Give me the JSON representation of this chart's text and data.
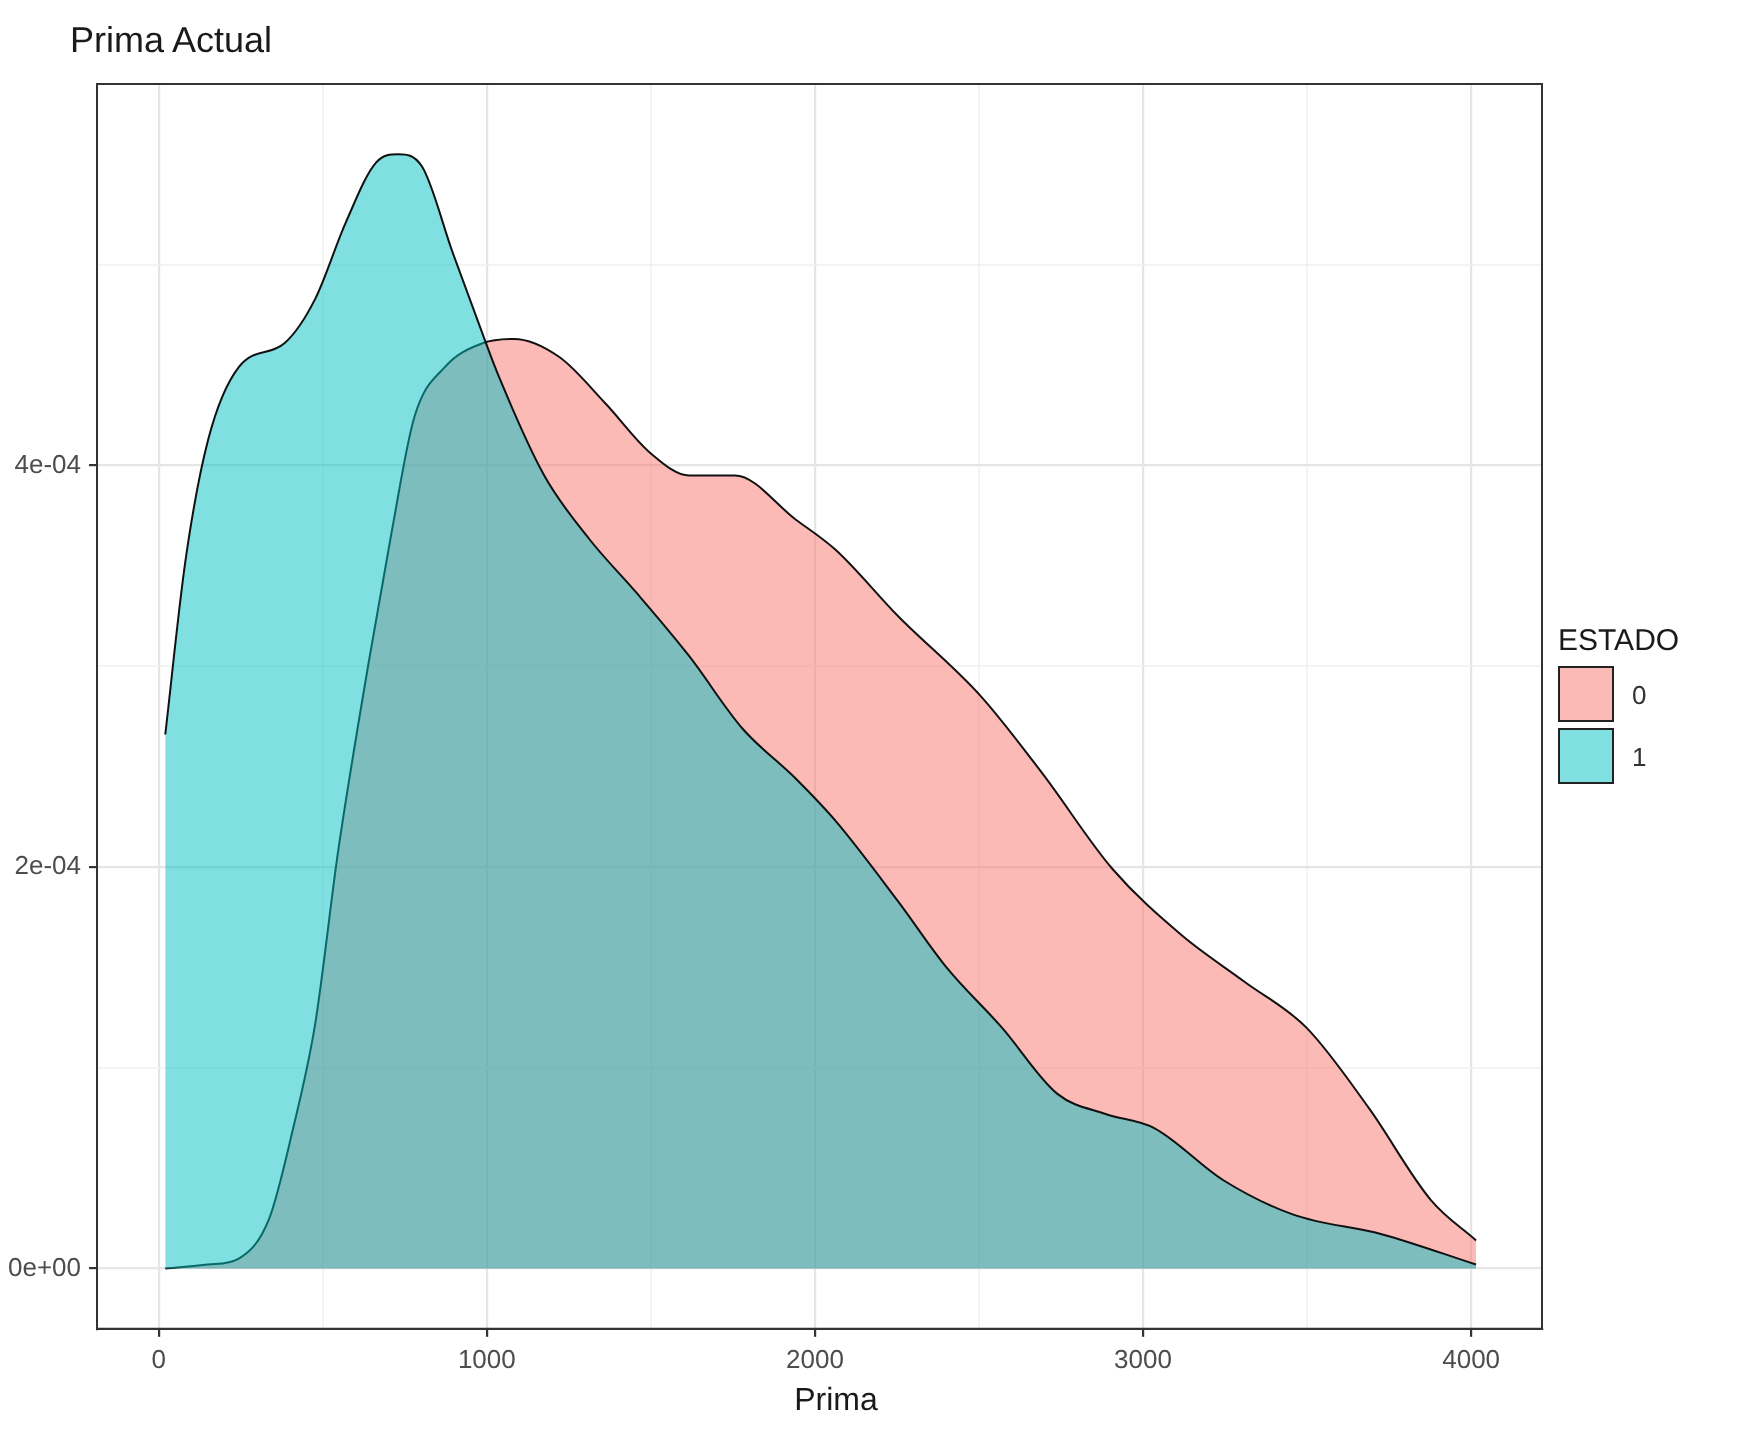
{
  "chart_data": {
    "type": "area",
    "title": "Prima Actual",
    "xlabel": "Prima",
    "legend_title": "ESTADO",
    "legend": "right",
    "grid": true,
    "xlim": [
      -188,
      4216
    ],
    "ylim": [
      -3e-05,
      0.00059
    ],
    "xticks": [
      0,
      {
        "value": 500,
        "label": null
      },
      1000,
      {
        "value": 1500,
        "label": null
      },
      2000,
      {
        "value": 2500,
        "label": null
      },
      3000,
      {
        "value": 3500,
        "label": null
      },
      4000
    ],
    "yticks": [
      {
        "value": 0,
        "label": "0e+00"
      },
      {
        "value": 0.0001,
        "label": null
      },
      {
        "value": 0.0002,
        "label": "2e-04"
      },
      {
        "value": 0.0003,
        "label": null
      },
      {
        "value": 0.0004,
        "label": "4e-04"
      },
      {
        "value": 0.0005,
        "label": null
      }
    ],
    "series": [
      {
        "name": "0",
        "color": "#f8766d",
        "x": [
          20,
          150,
          244,
          337,
          407,
          477,
          547,
          640,
          709,
          779,
          872,
          989,
          1082,
          1221,
          1361,
          1500,
          1617,
          1756,
          1942,
          2063,
          2253,
          2506,
          2696,
          2907,
          3118,
          3308,
          3498,
          3688,
          3878,
          4015
        ],
        "values": [
          0,
          2e-06,
          5e-06,
          2.5e-05,
          6.8e-05,
          0.000122,
          0.000208,
          0.000302,
          0.000366,
          0.000424,
          0.000449,
          0.000461,
          0.000463,
          0.000454,
          0.000431,
          0.000406,
          0.000395,
          0.000395,
          0.000373,
          0.000358,
          0.000325,
          0.000285,
          0.000246,
          0.000199,
          0.000166,
          0.000143,
          0.00012,
          8e-05,
          3.4e-05,
          1.4e-05
        ]
      },
      {
        "name": "1",
        "color": "#00bfc4",
        "x": [
          20,
          81,
          151,
          244,
          384,
          477,
          570,
          663,
          730,
          802,
          896,
          977,
          1035,
          1175,
          1314,
          1454,
          1617,
          1779,
          1942,
          2063,
          2253,
          2401,
          2570,
          2739,
          2886,
          3034,
          3245,
          3456,
          3730,
          4015
        ],
        "values": [
          0.000266,
          0.000352,
          0.000413,
          0.000449,
          0.000461,
          0.000483,
          0.000521,
          0.000551,
          0.000555,
          0.000549,
          0.000506,
          0.00047,
          0.000445,
          0.000395,
          0.000363,
          0.000337,
          0.000305,
          0.000269,
          0.000244,
          0.000223,
          0.000183,
          0.00015,
          0.00012,
          8.7e-05,
          7.7e-05,
          7e-05,
          4.4e-05,
          2.7e-05,
          1.7e-05,
          2e-06
        ]
      }
    ]
  }
}
